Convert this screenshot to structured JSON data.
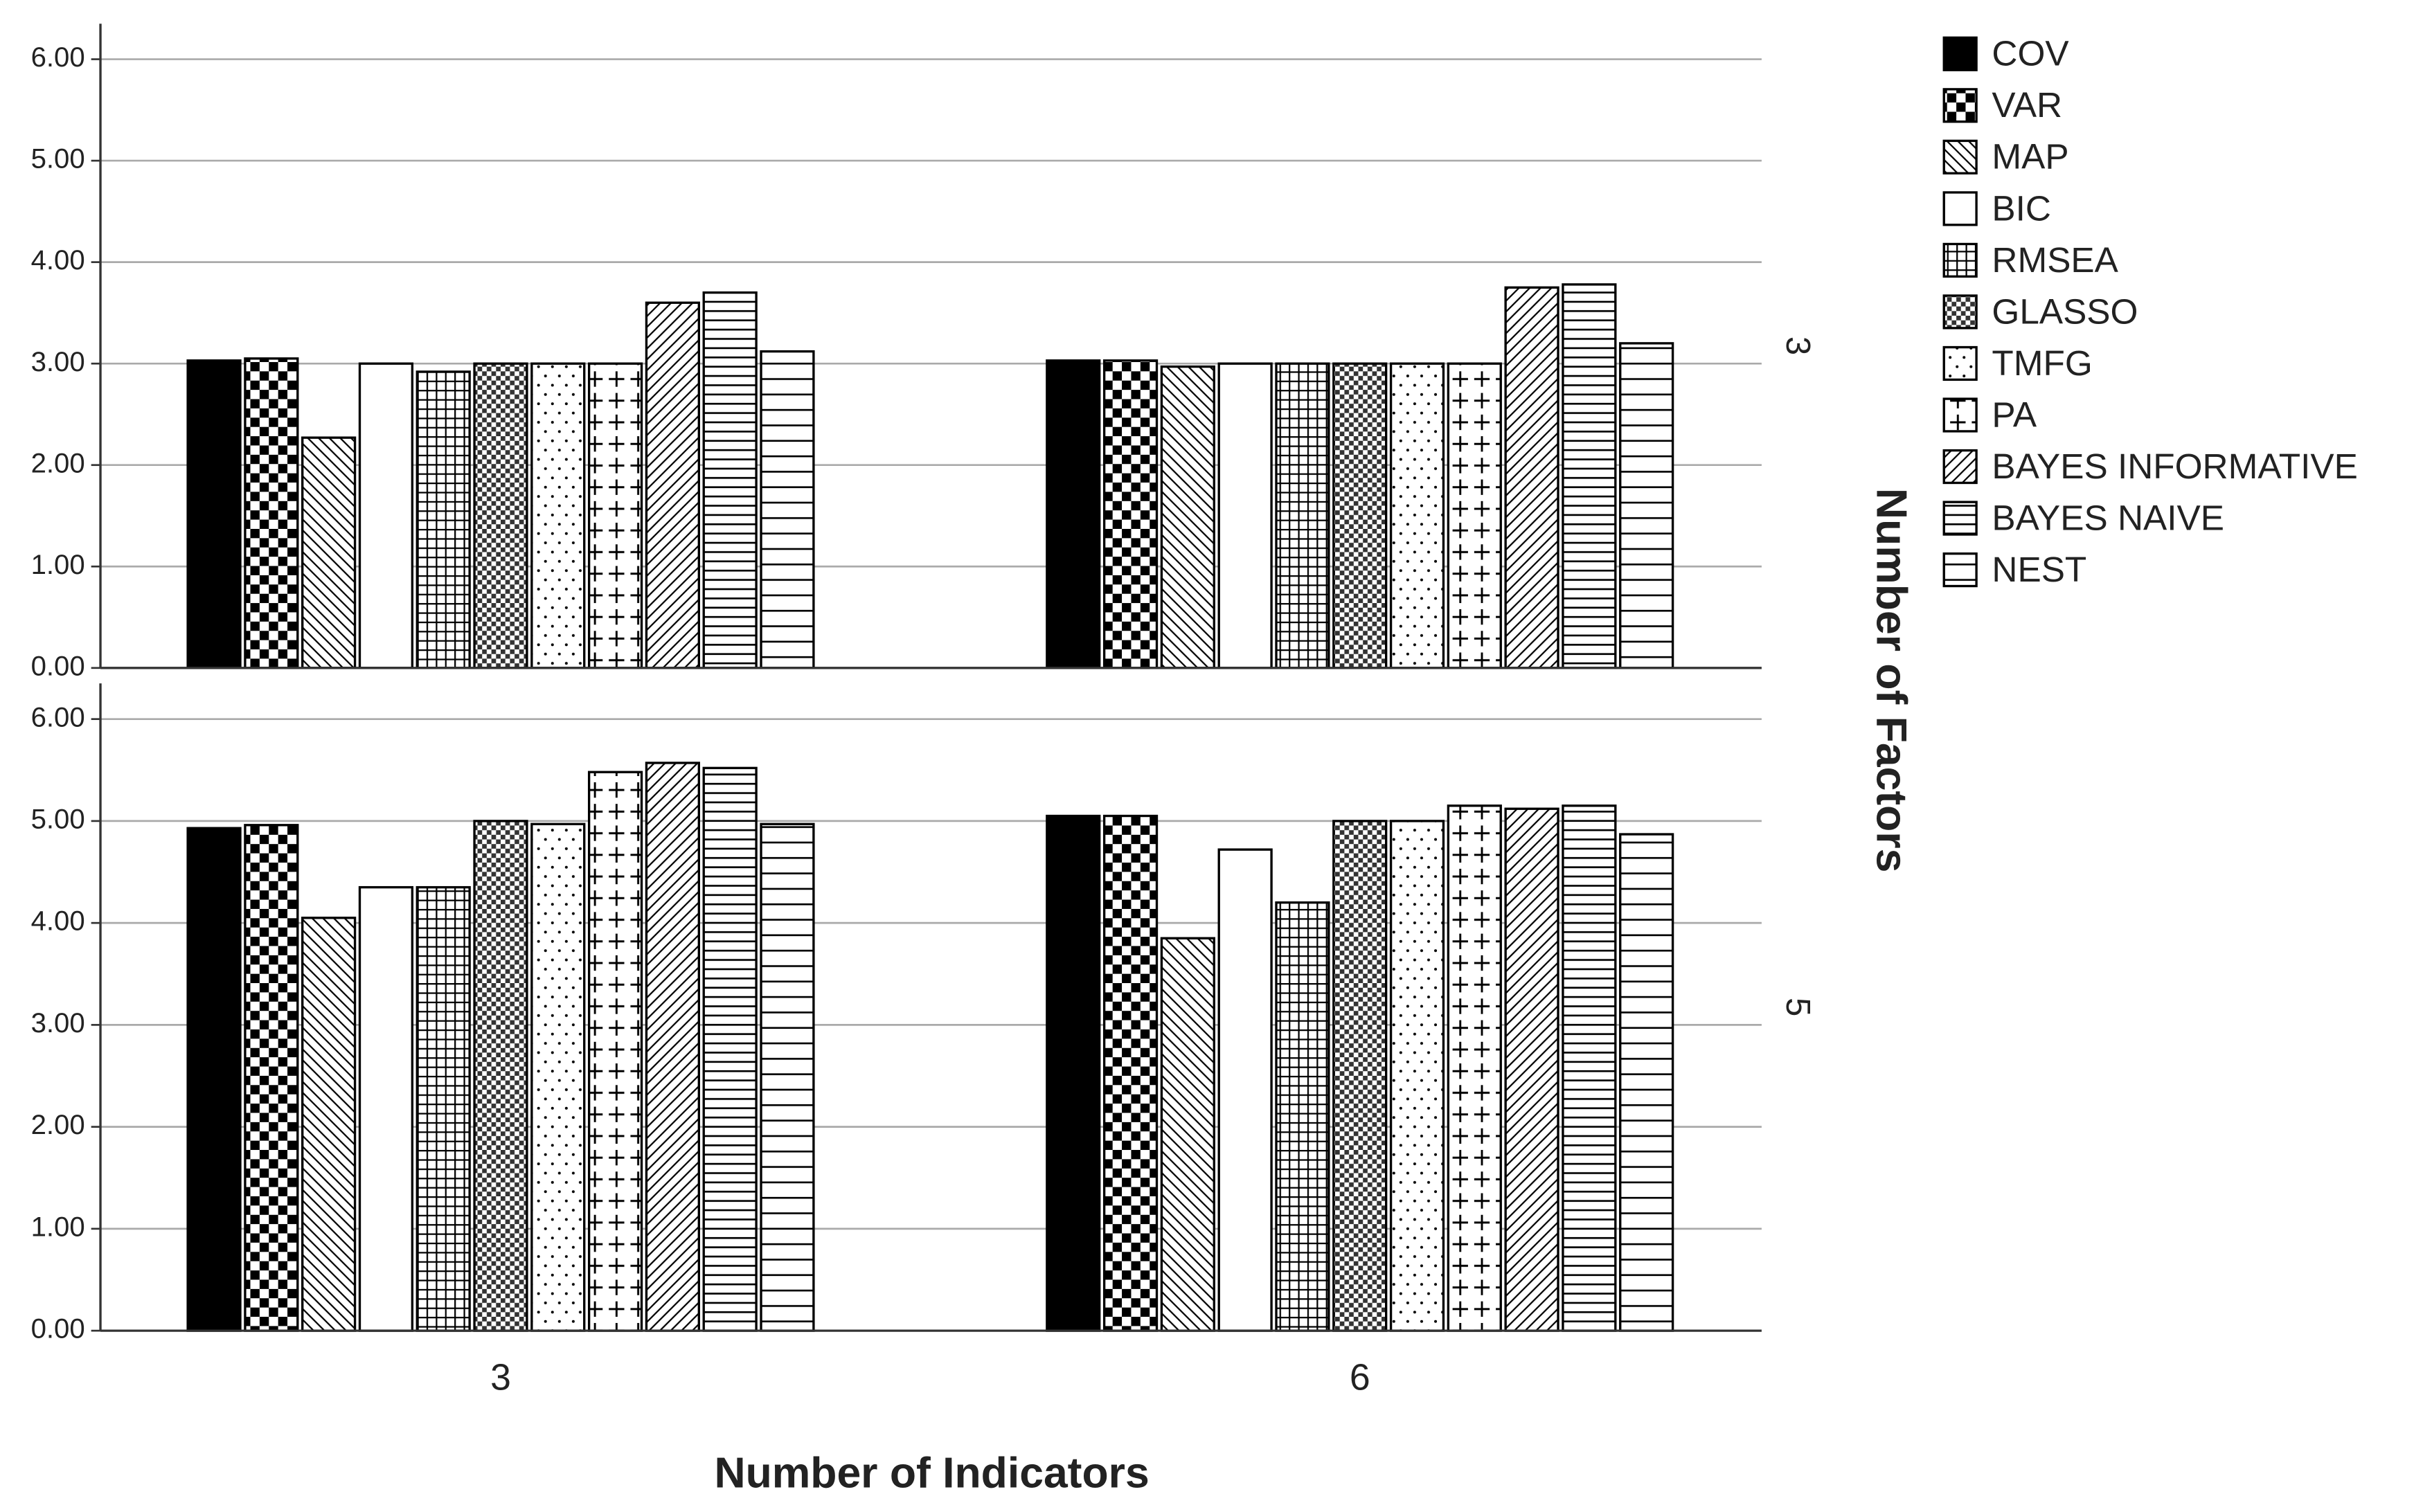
{
  "chart_data": {
    "type": "bar",
    "x_title": "Number of Indicators",
    "facet_title": "Number of Factors",
    "categories": [
      "3",
      "6"
    ],
    "ylim": [
      0,
      6.35
    ],
    "yticks": [
      {
        "value": 0,
        "label": "0.00"
      },
      {
        "value": 1,
        "label": "1.00"
      },
      {
        "value": 2,
        "label": "2.00"
      },
      {
        "value": 3,
        "label": "3.00"
      },
      {
        "value": 4,
        "label": "4.00"
      },
      {
        "value": 5,
        "label": "5.00"
      },
      {
        "value": 6,
        "label": "6.00"
      }
    ],
    "grid": true,
    "legend": [
      {
        "name": "COV",
        "pattern": "solid"
      },
      {
        "name": "VAR",
        "pattern": "checker"
      },
      {
        "name": "MAP",
        "pattern": "backslash"
      },
      {
        "name": "BIC",
        "pattern": "blank"
      },
      {
        "name": "RMSEA",
        "pattern": "grid"
      },
      {
        "name": "GLASSO",
        "pattern": "smallcheck"
      },
      {
        "name": "TMFG",
        "pattern": "dots"
      },
      {
        "name": "PA",
        "pattern": "plus"
      },
      {
        "name": "BAYES INFORMATIVE",
        "pattern": "slash"
      },
      {
        "name": "BAYES NAIVE",
        "pattern": "hdense"
      },
      {
        "name": "NEST",
        "pattern": "hsparse"
      }
    ],
    "facets": [
      {
        "label": "3",
        "series": [
          {
            "values": [
              3.03,
              3.03
            ]
          },
          {
            "values": [
              3.05,
              3.03
            ]
          },
          {
            "values": [
              2.27,
              2.97
            ]
          },
          {
            "values": [
              3.0,
              3.0
            ]
          },
          {
            "values": [
              2.92,
              3.0
            ]
          },
          {
            "values": [
              3.0,
              3.0
            ]
          },
          {
            "values": [
              3.0,
              3.0
            ]
          },
          {
            "values": [
              3.0,
              3.0
            ]
          },
          {
            "values": [
              3.6,
              3.75
            ]
          },
          {
            "values": [
              3.7,
              3.78
            ]
          },
          {
            "values": [
              3.12,
              3.2
            ]
          }
        ]
      },
      {
        "label": "5",
        "series": [
          {
            "values": [
              4.93,
              5.05
            ]
          },
          {
            "values": [
              4.96,
              5.05
            ]
          },
          {
            "values": [
              4.05,
              3.85
            ]
          },
          {
            "values": [
              4.35,
              4.72
            ]
          },
          {
            "values": [
              4.35,
              4.2
            ]
          },
          {
            "values": [
              5.0,
              5.0
            ]
          },
          {
            "values": [
              4.97,
              5.0
            ]
          },
          {
            "values": [
              5.48,
              5.15
            ]
          },
          {
            "values": [
              5.57,
              5.12
            ]
          },
          {
            "values": [
              5.52,
              5.15
            ]
          },
          {
            "values": [
              4.97,
              4.87
            ]
          }
        ]
      }
    ]
  }
}
